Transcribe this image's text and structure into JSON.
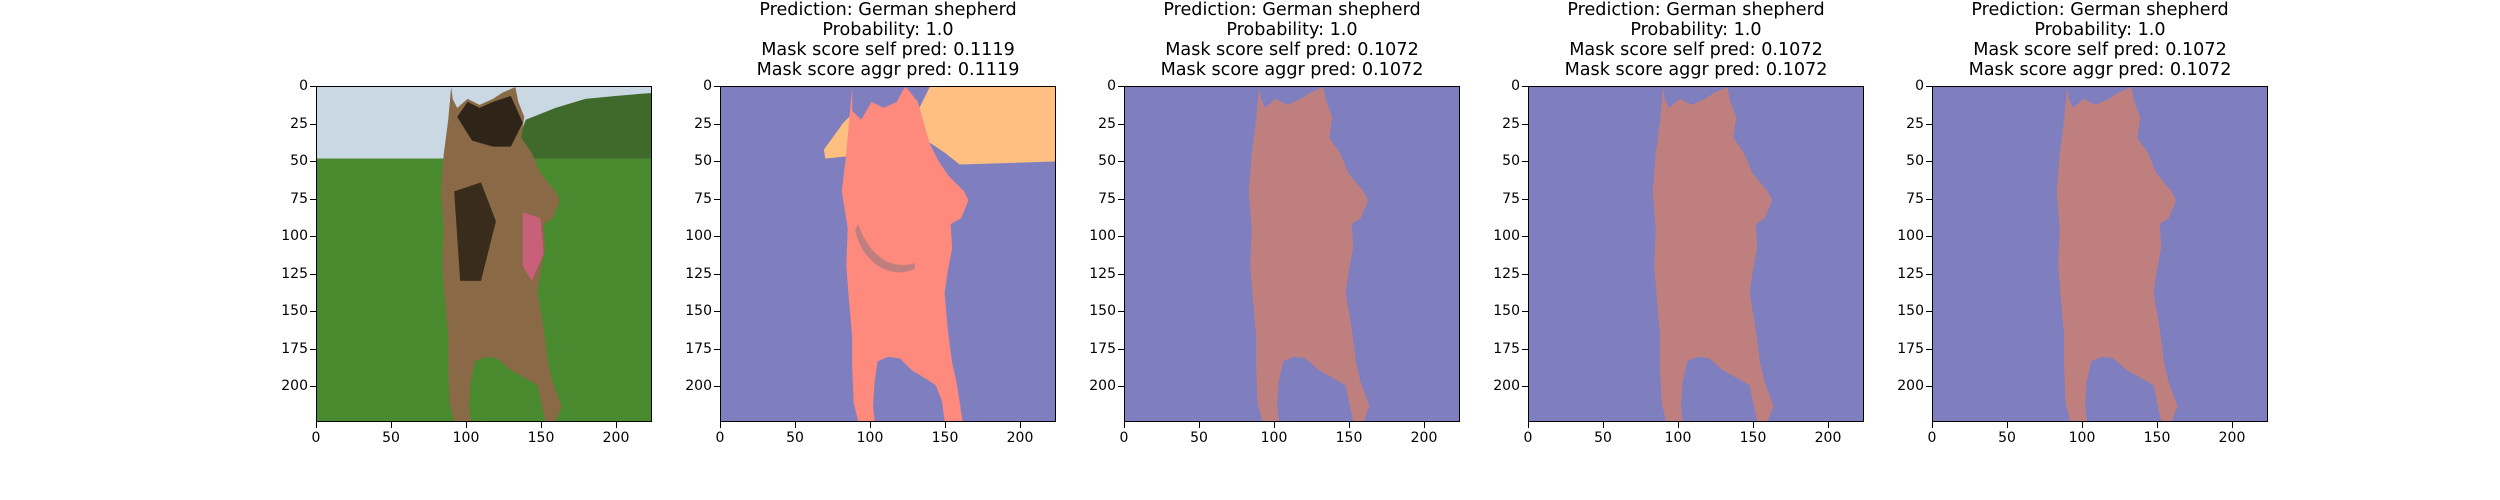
{
  "panels": [
    {
      "kind": "photo",
      "title": []
    },
    {
      "kind": "mask",
      "variant": "mask-a",
      "title": [
        "Prediction: German shepherd",
        "Probability: 1.0",
        "Mask score self pred: 0.1119",
        "Mask score aggr pred: 0.1119"
      ]
    },
    {
      "kind": "mask",
      "variant": "mask-b",
      "title": [
        "Prediction: German shepherd",
        "Probability: 1.0",
        "Mask score self pred: 0.1072",
        "Mask score aggr pred: 0.1072"
      ]
    },
    {
      "kind": "mask",
      "variant": "mask-b",
      "title": [
        "Prediction: German shepherd",
        "Probability: 1.0",
        "Mask score self pred: 0.1072",
        "Mask score aggr pred: 0.1072"
      ]
    },
    {
      "kind": "mask",
      "variant": "mask-b",
      "title": [
        "Prediction: German shepherd",
        "Probability: 1.0",
        "Mask score self pred: 0.1072",
        "Mask score aggr pred: 0.1072"
      ]
    }
  ],
  "axes": {
    "range": [
      0,
      224
    ],
    "y_ticks": [
      "0",
      "25",
      "50",
      "75",
      "100",
      "125",
      "150",
      "175",
      "200"
    ],
    "x_ticks": [
      "0",
      "50",
      "100",
      "150",
      "200"
    ]
  },
  "colors": {
    "background_class": "#7f7fbf",
    "dog_class": "#fe8a7e",
    "dog_class_blend": "#bf7f7f",
    "sky_class": "#ffbf80",
    "tongue_class": "#bf7f7f",
    "grass": "#4a8a2e",
    "sky": "#c9d8e2"
  }
}
